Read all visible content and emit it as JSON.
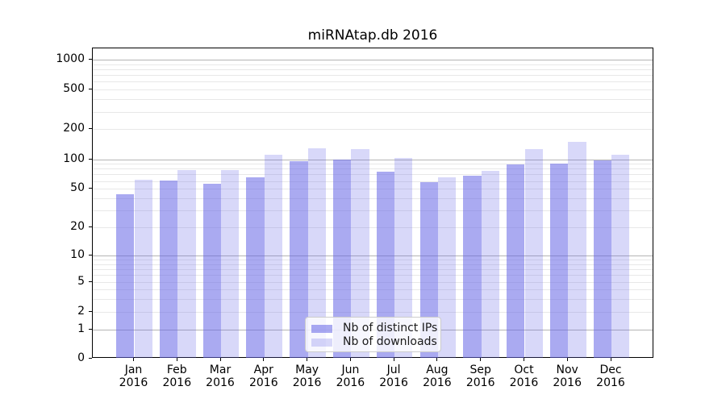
{
  "title": "miRNAtap.db 2016",
  "chart_data": {
    "type": "bar",
    "title": "miRNAtap.db 2016",
    "categories": [
      "Jan 2016",
      "Feb 2016",
      "Mar 2016",
      "Apr 2016",
      "May 2016",
      "Jun 2016",
      "Jul 2016",
      "Aug 2016",
      "Sep 2016",
      "Oct 2016",
      "Nov 2016",
      "Dec 2016"
    ],
    "x_tick_months": [
      "Jan",
      "Feb",
      "Mar",
      "Apr",
      "May",
      "Jun",
      "Jul",
      "Aug",
      "Sep",
      "Oct",
      "Nov",
      "Dec"
    ],
    "x_tick_year": "2016",
    "series": [
      {
        "name": "Nb of distinct IPs",
        "key": "distinct-ips",
        "color": "rgba(100,100,230,0.55)",
        "values": [
          44,
          61,
          56,
          65,
          96,
          100,
          75,
          58,
          68,
          88,
          91,
          97
        ]
      },
      {
        "name": "Nb of downloads",
        "key": "downloads",
        "color": "rgba(100,100,230,0.25)",
        "values": [
          62,
          78,
          78,
          110,
          129,
          126,
          103,
          66,
          76,
          126,
          150,
          111
        ]
      }
    ],
    "y_axis": {
      "scale": "log10(value+1)",
      "tick_values": [
        1000,
        500,
        200,
        100,
        50,
        20,
        10,
        5,
        2,
        1,
        0
      ],
      "top_value": 1296
    },
    "grid": {
      "major_values": [
        1,
        10,
        100,
        1000
      ],
      "minor_values": [
        2,
        3,
        4,
        5,
        6,
        7,
        8,
        9,
        20,
        30,
        40,
        50,
        60,
        70,
        80,
        90,
        200,
        300,
        400,
        500,
        600,
        700,
        800,
        900
      ]
    },
    "legend_position": "lower center",
    "colors": {
      "major_grid": "#b4b4b4",
      "minor_grid": "#e8e8e8",
      "axis": "#000000"
    }
  }
}
